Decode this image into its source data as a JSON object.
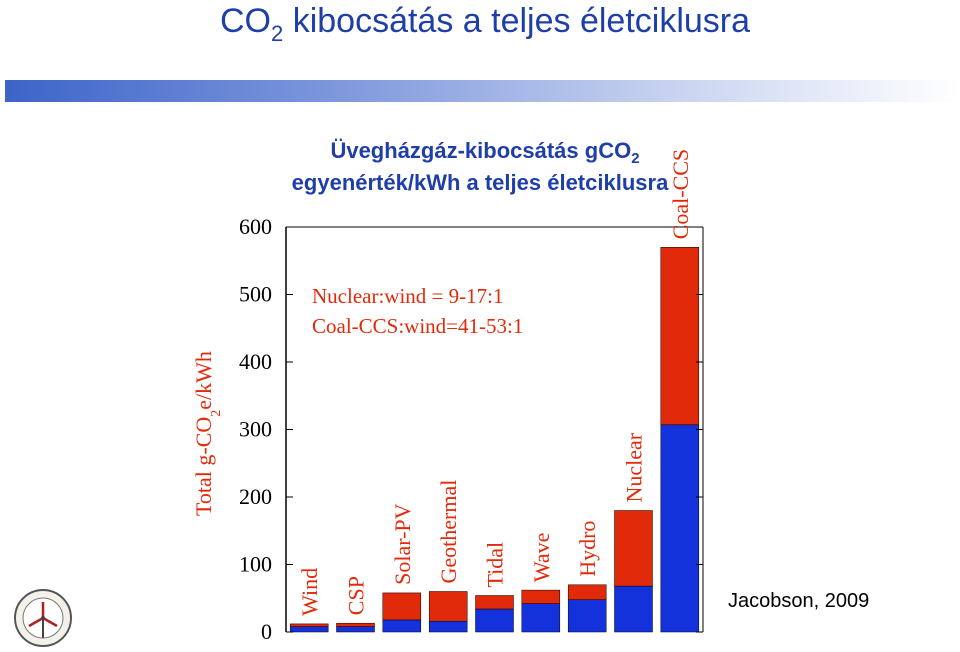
{
  "slide": {
    "title_main": "CO",
    "title_sub": "2",
    "title_rest": " kibocsátás a teljes életciklusra",
    "subtitle_line1_main": "Üvegházgáz-kibocsátás gCO",
    "subtitle_line1_sub": "2",
    "subtitle_line2": "egyenérték/kWh a teljes életciklusra",
    "citation": "Jacobson, 2009",
    "accent_color": "#1f3fa8",
    "logo": "wind-turbine-seal-icon"
  },
  "chart_data": {
    "type": "bar",
    "stacked": true,
    "title": "",
    "xlabel": "",
    "ylabel_main": "Total g-CO",
    "ylabel_sub": "2",
    "ylabel_rest": "e/kWh",
    "ylim": [
      0,
      600
    ],
    "yticks": [
      "0",
      "100",
      "200",
      "300",
      "400",
      "500",
      "600"
    ],
    "grid": false,
    "categories": [
      "Wind",
      "CSP",
      "Solar-PV",
      "Geothermal",
      "Tidal",
      "Wave",
      "Hydro",
      "Nuclear",
      "Coal-CCS"
    ],
    "series": [
      {
        "color": "#1432dc",
        "values": [
          8,
          8,
          18,
          16,
          34,
          42,
          48,
          68,
          307
        ]
      },
      {
        "color": "#e02a0a",
        "values": [
          4,
          5,
          40,
          44,
          20,
          20,
          22,
          112,
          263
        ]
      }
    ],
    "annotations": [
      "Nuclear:wind = 9-17:1",
      "Coal-CCS:wind=41-53:1"
    ],
    "annotation_color": "#e02a0a",
    "label_color": "#e02a0a",
    "axis_color": "#000000"
  }
}
